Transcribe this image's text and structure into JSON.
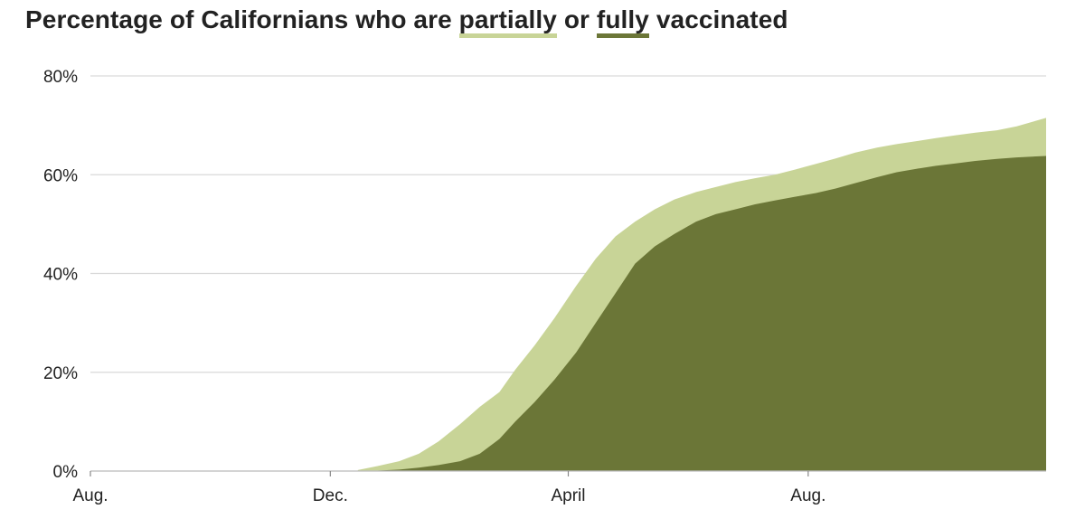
{
  "title": {
    "prefix": "Percentage of Californians who are",
    "partial": "partially",
    "middle": "or",
    "full": "fully",
    "suffix": "vaccinated"
  },
  "colors": {
    "partial": "#c8d497",
    "full": "#6b7637",
    "grid": "#d9d9d9",
    "text": "#222222"
  },
  "chart_data": {
    "type": "area",
    "title": "Percentage of Californians who are partially or fully vaccinated",
    "xlabel": "",
    "ylabel": "",
    "ylim": [
      0,
      80
    ],
    "grid": true,
    "y_ticks": [
      0,
      20,
      40,
      60,
      80
    ],
    "y_tick_labels": [
      "0%",
      "20%",
      "40%",
      "60%",
      "80%"
    ],
    "x_ticks": [
      {
        "label": "Aug.",
        "x": "2020-08-01"
      },
      {
        "label": "Dec.",
        "x": "2020-12-01"
      },
      {
        "label": "April",
        "x": "2021-04-01"
      },
      {
        "label": "Aug.",
        "x": "2021-08-01"
      }
    ],
    "xlim": [
      "2020-08-01",
      "2021-11-30"
    ],
    "x": [
      "2020-12-15",
      "2020-12-25",
      "2021-01-05",
      "2021-01-15",
      "2021-01-25",
      "2021-02-05",
      "2021-02-15",
      "2021-02-25",
      "2021-03-05",
      "2021-03-15",
      "2021-03-25",
      "2021-04-05",
      "2021-04-15",
      "2021-04-25",
      "2021-05-05",
      "2021-05-15",
      "2021-05-25",
      "2021-06-05",
      "2021-06-15",
      "2021-06-25",
      "2021-07-05",
      "2021-07-15",
      "2021-07-25",
      "2021-08-05",
      "2021-08-15",
      "2021-08-25",
      "2021-09-05",
      "2021-09-15",
      "2021-09-25",
      "2021-10-05",
      "2021-10-15",
      "2021-10-25",
      "2021-11-05",
      "2021-11-15",
      "2021-11-30"
    ],
    "series": [
      {
        "name": "partially",
        "values": [
          0.2,
          1.0,
          2.0,
          3.5,
          6.0,
          9.5,
          13.0,
          16.0,
          20.5,
          25.5,
          31.0,
          37.5,
          43.0,
          47.5,
          50.5,
          53.0,
          55.0,
          56.5,
          57.5,
          58.5,
          59.3,
          60.0,
          61.0,
          62.2,
          63.3,
          64.5,
          65.5,
          66.2,
          66.8,
          67.4,
          68.0,
          68.5,
          69.0,
          69.8,
          71.5
        ]
      },
      {
        "name": "fully",
        "values": [
          0.0,
          0.1,
          0.3,
          0.7,
          1.2,
          2.0,
          3.5,
          6.5,
          10.0,
          14.0,
          18.5,
          24.0,
          30.0,
          36.0,
          42.0,
          45.5,
          48.0,
          50.5,
          52.0,
          53.0,
          54.0,
          54.8,
          55.5,
          56.3,
          57.2,
          58.3,
          59.5,
          60.5,
          61.2,
          61.8,
          62.3,
          62.8,
          63.2,
          63.5,
          63.8
        ]
      }
    ]
  }
}
